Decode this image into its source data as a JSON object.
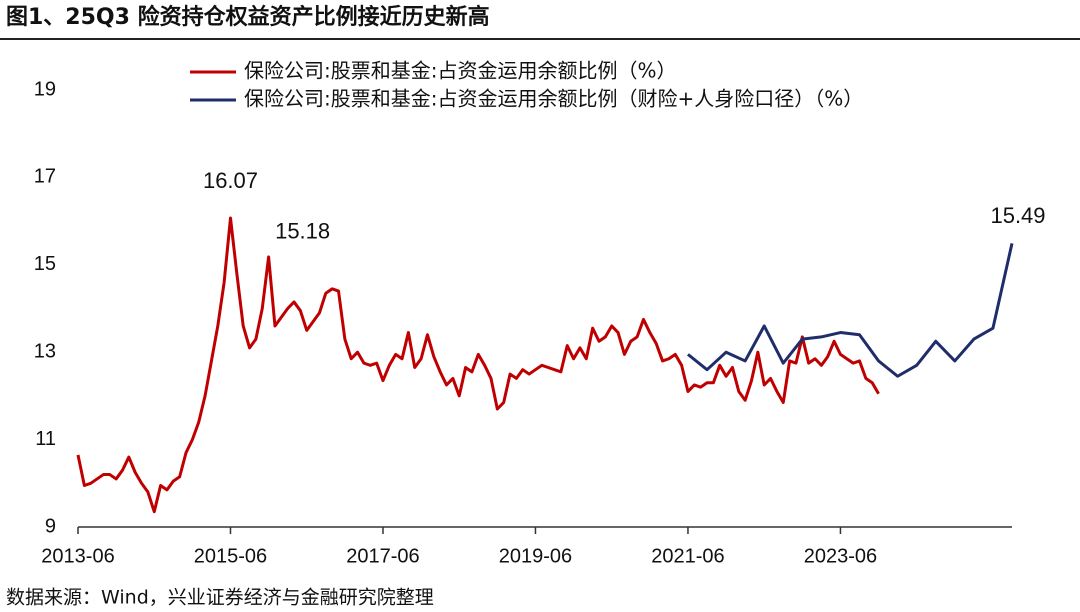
{
  "chart_data": {
    "type": "line",
    "title": "图1、25Q3 险资持仓权益资产比例接近历史新高",
    "source": "数据来源：Wind，兴业证券经济与金融研究院整理",
    "xlim": [
      "2013-06",
      "2025-09"
    ],
    "xticks": [
      "2013-06",
      "2015-06",
      "2017-06",
      "2019-06",
      "2021-06",
      "2023-06"
    ],
    "ylim": [
      9,
      19
    ],
    "yticks": [
      9,
      11,
      13,
      15,
      17,
      19
    ],
    "grid": false,
    "legend": "top-left",
    "series": [
      {
        "name": "保险公司:股票和基金:占资金运用余额比例（%）",
        "color": "#c00000",
        "x": [
          "2013-06",
          "2013-07",
          "2013-08",
          "2013-09",
          "2013-10",
          "2013-11",
          "2013-12",
          "2014-01",
          "2014-02",
          "2014-03",
          "2014-04",
          "2014-05",
          "2014-06",
          "2014-07",
          "2014-08",
          "2014-09",
          "2014-10",
          "2014-11",
          "2014-12",
          "2015-01",
          "2015-02",
          "2015-03",
          "2015-04",
          "2015-05",
          "2015-06",
          "2015-07",
          "2015-08",
          "2015-09",
          "2015-10",
          "2015-11",
          "2015-12",
          "2016-01",
          "2016-02",
          "2016-03",
          "2016-04",
          "2016-05",
          "2016-06",
          "2016-07",
          "2016-08",
          "2016-09",
          "2016-10",
          "2016-11",
          "2016-12",
          "2017-01",
          "2017-02",
          "2017-03",
          "2017-04",
          "2017-05",
          "2017-06",
          "2017-07",
          "2017-08",
          "2017-09",
          "2017-10",
          "2017-11",
          "2017-12",
          "2018-01",
          "2018-02",
          "2018-03",
          "2018-04",
          "2018-05",
          "2018-06",
          "2018-07",
          "2018-08",
          "2018-09",
          "2018-10",
          "2018-11",
          "2018-12",
          "2019-01",
          "2019-02",
          "2019-03",
          "2019-04",
          "2019-05",
          "2019-06",
          "2019-07",
          "2019-08",
          "2019-09",
          "2019-10",
          "2019-11",
          "2019-12",
          "2020-01",
          "2020-02",
          "2020-03",
          "2020-04",
          "2020-05",
          "2020-06",
          "2020-07",
          "2020-08",
          "2020-09",
          "2020-10",
          "2020-11",
          "2020-12",
          "2021-01",
          "2021-02",
          "2021-03",
          "2021-04",
          "2021-05",
          "2021-06",
          "2021-07",
          "2021-08",
          "2021-09",
          "2021-10",
          "2021-11",
          "2021-12",
          "2022-01",
          "2022-02",
          "2022-03",
          "2022-04",
          "2022-05",
          "2022-06",
          "2022-07",
          "2022-08",
          "2022-09",
          "2022-10",
          "2022-11",
          "2022-12",
          "2023-01",
          "2023-02",
          "2023-03",
          "2023-04",
          "2023-05",
          "2023-06",
          "2023-07",
          "2023-08",
          "2023-09",
          "2023-10",
          "2023-11",
          "2023-12"
        ],
        "values": [
          10.65,
          9.95,
          10.0,
          10.1,
          10.2,
          10.2,
          10.1,
          10.3,
          10.6,
          10.25,
          10.0,
          9.8,
          9.35,
          9.95,
          9.85,
          10.05,
          10.15,
          10.7,
          11.0,
          11.4,
          12.0,
          12.8,
          13.6,
          14.6,
          16.07,
          14.8,
          13.6,
          13.1,
          13.3,
          14.0,
          15.18,
          13.6,
          13.8,
          14.0,
          14.15,
          13.95,
          13.5,
          13.7,
          13.9,
          14.35,
          14.45,
          14.4,
          13.3,
          12.85,
          13.0,
          12.75,
          12.7,
          12.75,
          12.35,
          12.7,
          12.95,
          12.85,
          13.45,
          12.65,
          12.85,
          13.4,
          12.9,
          12.55,
          12.25,
          12.4,
          12.0,
          12.65,
          12.55,
          12.95,
          12.7,
          12.4,
          11.7,
          11.85,
          12.5,
          12.4,
          12.6,
          12.5,
          12.6,
          12.7,
          12.65,
          12.6,
          12.55,
          13.15,
          12.85,
          13.1,
          12.85,
          13.55,
          13.25,
          13.35,
          13.6,
          13.45,
          12.95,
          13.25,
          13.35,
          13.75,
          13.45,
          13.2,
          12.8,
          12.85,
          12.95,
          12.7,
          12.1,
          12.25,
          12.2,
          12.3,
          12.3,
          12.7,
          12.45,
          12.65,
          12.1,
          11.9,
          12.35,
          13.0,
          12.25,
          12.4,
          12.1,
          11.85,
          12.8,
          12.75,
          13.35,
          12.75,
          12.85,
          12.7,
          12.9,
          13.25,
          12.95,
          12.85,
          12.75,
          12.8,
          12.4,
          12.3,
          12.05
        ]
      },
      {
        "name": "保险公司:股票和基金:占资金运用余额比例（财险+人身险口径）（%）",
        "color": "#1f2d6b",
        "x": [
          "2021-06",
          "2021-09",
          "2021-12",
          "2022-03",
          "2022-06",
          "2022-09",
          "2022-12",
          "2023-03",
          "2023-06",
          "2023-09",
          "2023-12",
          "2024-03",
          "2024-06",
          "2024-09",
          "2024-12",
          "2025-03",
          "2025-06",
          "2025-09"
        ],
        "values": [
          12.95,
          12.6,
          13.0,
          12.8,
          13.6,
          12.75,
          13.3,
          13.35,
          13.45,
          13.4,
          12.8,
          12.45,
          12.7,
          13.25,
          12.8,
          13.3,
          13.55,
          15.49
        ]
      }
    ]
  }
}
